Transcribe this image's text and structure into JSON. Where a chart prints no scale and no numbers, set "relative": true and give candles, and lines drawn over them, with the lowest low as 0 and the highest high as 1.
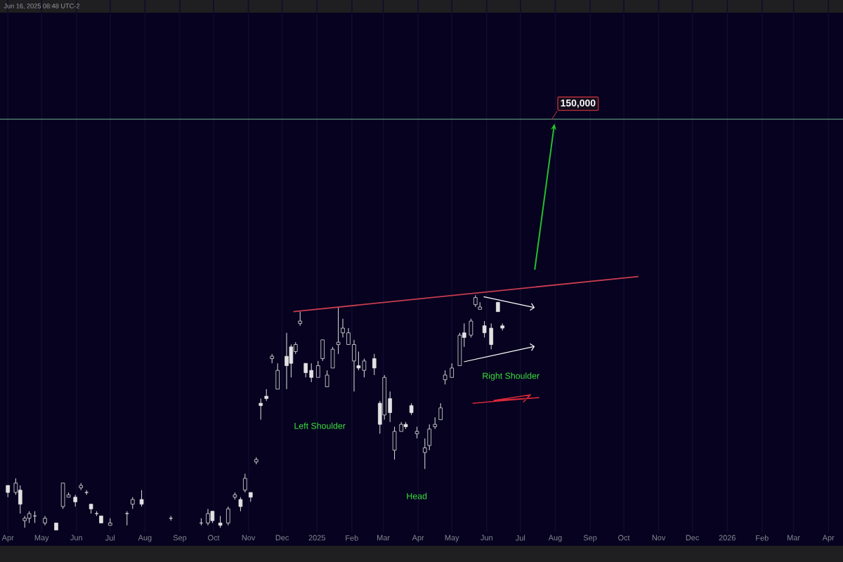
{
  "chart_data": {
    "type": "candlestick",
    "relative": true,
    "color": "#e2e2e2",
    "grid": "x",
    "x": [
      "2024-04-01",
      "2024-04-08",
      "2024-04-12",
      "2024-04-16",
      "2024-04-20",
      "2024-04-25",
      "2024-05-04",
      "2024-05-14",
      "2024-05-20",
      "2024-05-25",
      "2024-05-31",
      "2024-06-05",
      "2024-06-10",
      "2024-06-14",
      "2024-06-19",
      "2024-06-23",
      "2024-07-01",
      "2024-07-16",
      "2024-07-21",
      "2024-07-29",
      "2024-08-24",
      "2024-09-20",
      "2024-09-26",
      "2024-09-30",
      "2024-10-07",
      "2024-10-14",
      "2024-10-20",
      "2024-10-25",
      "2024-10-29",
      "2024-11-03",
      "2024-11-08",
      "2024-11-12",
      "2024-11-17",
      "2024-11-22",
      "2024-11-27",
      "2024-12-05",
      "2024-12-09",
      "2024-12-13",
      "2024-12-17",
      "2024-12-22",
      "2024-12-27",
      "2025-01-02",
      "2025-01-06",
      "2025-01-10",
      "2025-01-15",
      "2025-01-20",
      "2025-01-24",
      "2025-01-29",
      "2025-02-03",
      "2025-02-07",
      "2025-02-12",
      "2025-02-21",
      "2025-02-26",
      "2025-03-02",
      "2025-03-07",
      "2025-03-11",
      "2025-03-17",
      "2025-03-21",
      "2025-03-26",
      "2025-03-31",
      "2025-04-07",
      "2025-04-11",
      "2025-04-16",
      "2025-04-21",
      "2025-04-25",
      "2025-05-01",
      "2025-05-08",
      "2025-05-12",
      "2025-05-18",
      "2025-05-22",
      "2025-05-26",
      "2025-05-30",
      "2025-06-05",
      "2025-06-11",
      "2025-06-15"
    ],
    "ohlc": [
      [
        0.19,
        0.19,
        0.14,
        0.16
      ],
      [
        0.16,
        0.22,
        0.15,
        0.2
      ],
      [
        0.17,
        0.19,
        0.07,
        0.11
      ],
      [
        0.04,
        0.06,
        0.01,
        0.05
      ],
      [
        0.05,
        0.08,
        0.03,
        0.07
      ],
      [
        0.06,
        0.08,
        0.03,
        0.06
      ],
      [
        0.03,
        0.06,
        0.02,
        0.05
      ],
      [
        0.03,
        0.03,
        0.0,
        0.0
      ],
      [
        0.1,
        0.2,
        0.09,
        0.2
      ],
      [
        0.14,
        0.16,
        0.14,
        0.15
      ],
      [
        0.14,
        0.15,
        0.1,
        0.12
      ],
      [
        0.18,
        0.2,
        0.17,
        0.19
      ],
      [
        0.16,
        0.17,
        0.15,
        0.16
      ],
      [
        0.11,
        0.11,
        0.07,
        0.09
      ],
      [
        0.07,
        0.08,
        0.06,
        0.07
      ],
      [
        0.06,
        0.06,
        0.03,
        0.03
      ],
      [
        0.02,
        0.05,
        0.02,
        0.03
      ],
      [
        0.07,
        0.08,
        0.02,
        0.07
      ],
      [
        0.11,
        0.14,
        0.09,
        0.13
      ],
      [
        0.13,
        0.17,
        0.1,
        0.11
      ],
      [
        0.05,
        0.06,
        0.04,
        0.05
      ],
      [
        0.03,
        0.05,
        0.02,
        0.03
      ],
      [
        0.03,
        0.09,
        0.02,
        0.07
      ],
      [
        0.08,
        0.08,
        0.03,
        0.04
      ],
      [
        0.03,
        0.06,
        0.01,
        0.02
      ],
      [
        0.03,
        0.1,
        0.02,
        0.09
      ],
      [
        0.14,
        0.16,
        0.13,
        0.15
      ],
      [
        0.13,
        0.14,
        0.08,
        0.1
      ],
      [
        0.17,
        0.24,
        0.16,
        0.22
      ],
      [
        0.16,
        0.16,
        0.12,
        0.14
      ],
      [
        0.29,
        0.31,
        0.28,
        0.3
      ],
      [
        0.54,
        0.56,
        0.47,
        0.53
      ],
      [
        0.57,
        0.6,
        0.55,
        0.56
      ],
      [
        0.73,
        0.75,
        0.71,
        0.74
      ],
      [
        0.6,
        0.71,
        0.6,
        0.68
      ],
      [
        0.74,
        0.84,
        0.6,
        0.7
      ],
      [
        0.78,
        0.79,
        0.65,
        0.71
      ],
      [
        0.76,
        0.8,
        0.75,
        0.79
      ],
      [
        0.88,
        0.93,
        0.87,
        0.89
      ],
      [
        0.71,
        0.71,
        0.65,
        0.67
      ],
      [
        0.68,
        0.71,
        0.63,
        0.65
      ],
      [
        0.65,
        0.72,
        0.65,
        0.7
      ],
      [
        0.73,
        0.81,
        0.72,
        0.81
      ],
      [
        0.61,
        0.68,
        0.61,
        0.66
      ],
      [
        0.69,
        0.78,
        0.69,
        0.77
      ],
      [
        0.79,
        0.95,
        0.75,
        0.8
      ],
      [
        0.84,
        0.9,
        0.82,
        0.86
      ],
      [
        0.79,
        0.86,
        0.79,
        0.84
      ],
      [
        0.72,
        0.81,
        0.59,
        0.79
      ],
      [
        0.7,
        0.76,
        0.68,
        0.69
      ],
      [
        0.68,
        0.73,
        0.65,
        0.72
      ],
      [
        0.73,
        0.75,
        0.66,
        0.69
      ],
      [
        0.54,
        0.55,
        0.41,
        0.45
      ],
      [
        0.49,
        0.66,
        0.47,
        0.65
      ],
      [
        0.56,
        0.59,
        0.46,
        0.5
      ],
      [
        0.34,
        0.44,
        0.3,
        0.42
      ],
      [
        0.42,
        0.46,
        0.42,
        0.45
      ],
      [
        0.45,
        0.46,
        0.43,
        0.44
      ],
      [
        0.53,
        0.54,
        0.49,
        0.5
      ],
      [
        0.41,
        0.44,
        0.39,
        0.42
      ],
      [
        0.33,
        0.39,
        0.26,
        0.35
      ],
      [
        0.36,
        0.45,
        0.34,
        0.43
      ],
      [
        0.44,
        0.48,
        0.43,
        0.45
      ],
      [
        0.47,
        0.54,
        0.47,
        0.52
      ],
      [
        0.64,
        0.68,
        0.62,
        0.66
      ],
      [
        0.65,
        0.71,
        0.65,
        0.69
      ],
      [
        0.7,
        0.84,
        0.7,
        0.83
      ],
      [
        0.84,
        0.88,
        0.78,
        0.82
      ],
      [
        0.83,
        0.9,
        0.82,
        0.89
      ],
      [
        0.96,
        1.0,
        0.95,
        0.99
      ],
      [
        0.94,
        0.97,
        0.94,
        0.95
      ],
      [
        0.87,
        0.89,
        0.82,
        0.84
      ],
      [
        0.86,
        0.88,
        0.77,
        0.79
      ],
      [
        0.97,
        0.97,
        0.93,
        0.93
      ],
      [
        0.87,
        0.88,
        0.85,
        0.86
      ]
    ],
    "series": [
      {
        "type": "line",
        "color": "#c83c50",
        "x": [
          "2024-12-11",
          "2025-10-14"
        ],
        "values": [
          0.93,
          1.08
        ]
      }
    ],
    "xlim": [
      "2024-03-25",
      "2026-04-14"
    ],
    "xticks": [
      {
        "value": "2024-04-01",
        "label": "Apr"
      },
      {
        "value": "2024-05-01",
        "label": "May"
      },
      {
        "value": "2024-06-01",
        "label": "Jun"
      },
      {
        "value": "2024-07-01",
        "label": "Jul"
      },
      {
        "value": "2024-08-01",
        "label": "Aug"
      },
      {
        "value": "2024-09-01",
        "label": "Sep"
      },
      {
        "value": "2024-10-01",
        "label": "Oct"
      },
      {
        "value": "2024-11-01",
        "label": "Nov"
      },
      {
        "value": "2024-12-01",
        "label": "Dec"
      },
      {
        "value": "2025-01-01",
        "label": "2025"
      },
      {
        "value": "2025-02-01",
        "label": "Feb"
      },
      {
        "value": "2025-03-01",
        "label": "Mar"
      },
      {
        "value": "2025-04-01",
        "label": "Apr"
      },
      {
        "value": "2025-05-01",
        "label": "May"
      },
      {
        "value": "2025-06-01",
        "label": "Jun"
      },
      {
        "value": "2025-07-01",
        "label": "Jul"
      },
      {
        "value": "2025-08-01",
        "label": "Aug"
      },
      {
        "value": "2025-09-01",
        "label": "Sep"
      },
      {
        "value": "2025-10-01",
        "label": "Oct"
      },
      {
        "value": "2025-11-01",
        "label": "Nov"
      },
      {
        "value": "2025-12-01",
        "label": "Dec"
      },
      {
        "value": "2026-01-01",
        "label": "2026"
      },
      {
        "value": "2026-02-01",
        "label": "Feb"
      },
      {
        "value": "2026-03-01",
        "label": "Mar"
      },
      {
        "value": "2026-04-01",
        "label": "Apr"
      }
    ],
    "ref_lines": [
      {
        "axis": "y",
        "value": 1.75,
        "color": "#5b8f78"
      }
    ],
    "annotations": [
      "Jun 16, 2025 08:48 UTC-2",
      "150,000",
      "Left Shoulder",
      "Head",
      "Right Shoulder"
    ],
    "tick_labels": "x"
  }
}
